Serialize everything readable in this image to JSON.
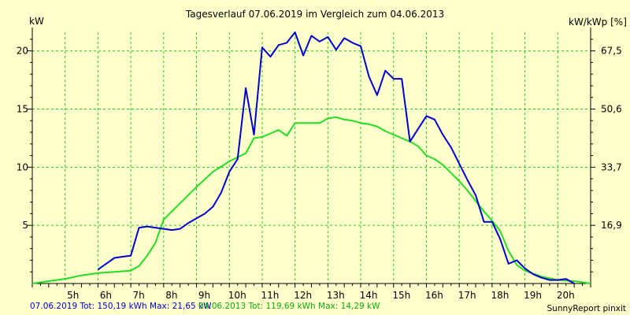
{
  "colors": {
    "background": "#ffffcc",
    "grid": "#22cc22",
    "axis": "#000000",
    "series_2019": "#0000cc",
    "series_2013": "#22dd22",
    "footer_2019": "#0000cc",
    "footer_2013": "#11aa11"
  },
  "chart_data": {
    "type": "line",
    "title": "Tagesverlauf 07.06.2019 im Vergleich zum 04.06.2013",
    "ylabel_left": "kW",
    "ylabel_right": "kW/kWp [%]",
    "xlim": [
      4.0,
      21.0
    ],
    "ylim": [
      0,
      21.6
    ],
    "x_ticks": [
      5,
      6,
      7,
      8,
      9,
      10,
      11,
      12,
      13,
      14,
      15,
      16,
      17,
      18,
      19,
      20
    ],
    "x_tick_labels": [
      "5h",
      "6h",
      "7h",
      "8h",
      "9h",
      "10h",
      "11h",
      "12h",
      "13h",
      "14h",
      "15h",
      "16h",
      "17h",
      "18h",
      "19h",
      "20h"
    ],
    "y_ticks_left": [
      5,
      10,
      15,
      20
    ],
    "y_tick_labels_left": [
      "5",
      "10",
      "15",
      "20"
    ],
    "y_ticks_right_positions": [
      5,
      10,
      15,
      20
    ],
    "y_tick_labels_right": [
      "16,9",
      "33,7",
      "50,6",
      "67,5"
    ],
    "grid": true,
    "series": [
      {
        "name": "07.06.2019",
        "x": [
          6.0,
          6.25,
          6.5,
          6.75,
          7.0,
          7.25,
          7.5,
          7.75,
          8.0,
          8.25,
          8.5,
          8.75,
          9.0,
          9.25,
          9.5,
          9.75,
          10.0,
          10.25,
          10.5,
          10.75,
          11.0,
          11.25,
          11.5,
          11.75,
          12.0,
          12.25,
          12.5,
          12.75,
          13.0,
          13.25,
          13.5,
          13.75,
          14.0,
          14.25,
          14.5,
          14.75,
          15.0,
          15.25,
          15.5,
          15.75,
          16.0,
          16.25,
          16.5,
          16.75,
          17.0,
          17.25,
          17.5,
          17.75,
          18.0,
          18.25,
          18.5,
          18.75,
          19.0,
          19.25,
          19.5,
          19.75,
          20.0,
          20.25,
          20.5
        ],
        "values": [
          1.2,
          1.7,
          2.2,
          2.3,
          2.4,
          4.8,
          4.9,
          4.8,
          4.7,
          4.6,
          4.7,
          5.2,
          5.6,
          6.0,
          6.6,
          7.8,
          9.6,
          10.7,
          16.8,
          12.8,
          20.3,
          19.5,
          20.5,
          20.7,
          21.6,
          19.6,
          21.3,
          20.8,
          21.2,
          20.1,
          21.1,
          20.7,
          20.4,
          17.8,
          16.2,
          18.3,
          17.6,
          17.6,
          12.2,
          13.3,
          14.4,
          14.1,
          12.8,
          11.7,
          10.3,
          8.9,
          7.6,
          5.3,
          5.3,
          3.8,
          1.7,
          2.0,
          1.3,
          0.8,
          0.5,
          0.3,
          0.3,
          0.4,
          0.0
        ]
      },
      {
        "name": "04.06.2013",
        "x": [
          4.0,
          4.5,
          5.0,
          5.5,
          6.0,
          6.5,
          7.0,
          7.25,
          7.5,
          7.75,
          8.0,
          8.5,
          9.0,
          9.5,
          10.0,
          10.5,
          10.75,
          11.0,
          11.25,
          11.5,
          11.75,
          12.0,
          12.25,
          12.5,
          12.75,
          13.0,
          13.25,
          13.5,
          13.75,
          14.0,
          14.25,
          14.5,
          14.75,
          15.0,
          15.25,
          15.5,
          15.75,
          16.0,
          16.25,
          16.5,
          16.75,
          17.0,
          17.25,
          17.5,
          17.75,
          18.0,
          18.25,
          18.5,
          18.75,
          19.0,
          19.5,
          20.0,
          20.5,
          21.0
        ],
        "values": [
          0.0,
          0.2,
          0.4,
          0.7,
          0.9,
          1.0,
          1.1,
          1.5,
          2.4,
          3.5,
          5.5,
          6.9,
          8.3,
          9.6,
          10.5,
          11.2,
          12.5,
          12.6,
          12.9,
          13.2,
          12.7,
          13.8,
          13.8,
          13.8,
          13.8,
          14.2,
          14.3,
          14.1,
          14.0,
          13.8,
          13.7,
          13.5,
          13.1,
          12.8,
          12.5,
          12.2,
          11.8,
          11.0,
          10.7,
          10.2,
          9.5,
          8.8,
          8.0,
          7.1,
          6.2,
          5.4,
          4.5,
          2.8,
          1.6,
          1.1,
          0.6,
          0.3,
          0.2,
          0.0
        ]
      }
    ]
  },
  "footer": {
    "stats_2019": "07.06.2019 Tot: 150,19 kWh Max: 21,65 kW",
    "stats_2013": "04.06.2013 Tot: 119,69 kWh Max: 14,29 kW",
    "brand": "SunnyReport pinxit"
  }
}
